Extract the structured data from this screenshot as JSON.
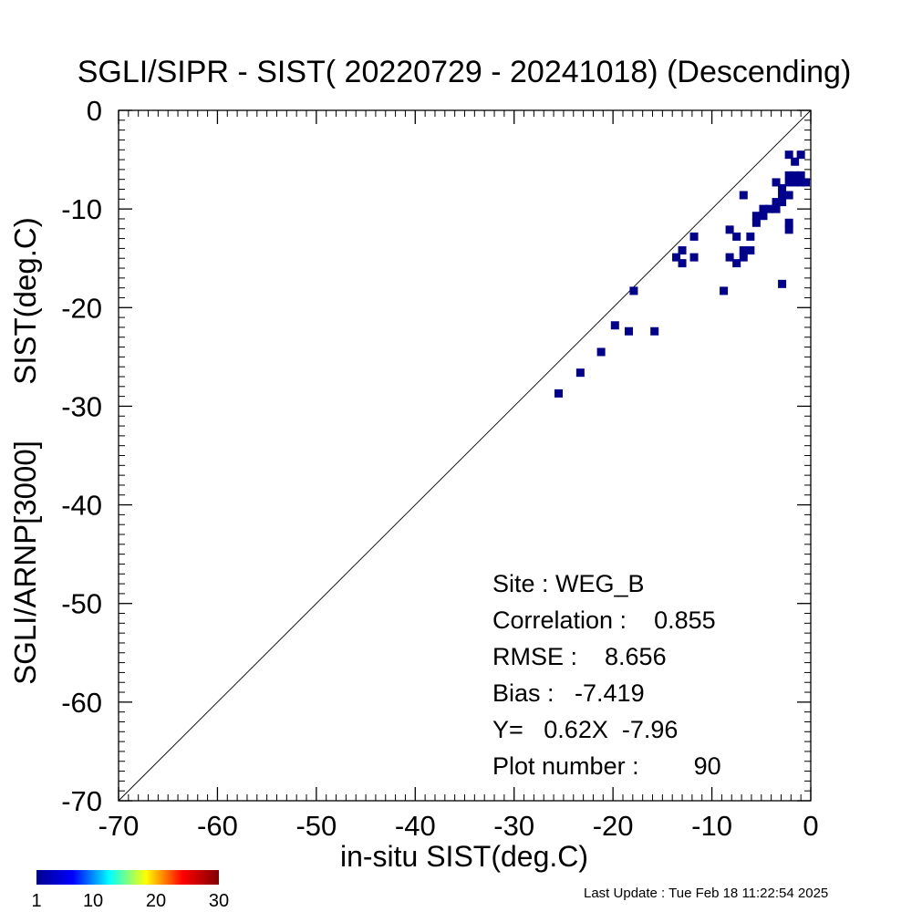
{
  "chart_data": {
    "type": "scatter",
    "title": "SGLI/SIPR - SIST( 20220729 - 20241018) (Descending)",
    "xlabel": "in-situ SIST(deg.C)",
    "ylabel_lines": [
      "SGLI/ARNP[3000]",
      "SIST(deg.C)"
    ],
    "xlim": [
      -70,
      0
    ],
    "ylim": [
      -70,
      0
    ],
    "x_ticks": [
      -70,
      -60,
      -50,
      -40,
      -30,
      -20,
      -10,
      0
    ],
    "y_ticks": [
      -70,
      -60,
      -50,
      -40,
      -30,
      -20,
      -10,
      0
    ],
    "one_to_one_line": true,
    "grid": false,
    "point_color": "#00008c",
    "points": [
      [
        -25.5,
        -28.7
      ],
      [
        -23.3,
        -26.6
      ],
      [
        -21.2,
        -24.5
      ],
      [
        -19.8,
        -21.8
      ],
      [
        -18.4,
        -22.4
      ],
      [
        -15.8,
        -22.4
      ],
      [
        -17.9,
        -18.3
      ],
      [
        -13.6,
        -14.9
      ],
      [
        -13.0,
        -14.2
      ],
      [
        -13.0,
        -15.5
      ],
      [
        -11.8,
        -12.8
      ],
      [
        -11.8,
        -14.9
      ],
      [
        -8.8,
        -18.3
      ],
      [
        -8.2,
        -12.1
      ],
      [
        -8.2,
        -14.9
      ],
      [
        -7.5,
        -12.8
      ],
      [
        -7.5,
        -15.5
      ],
      [
        -6.8,
        -8.6
      ],
      [
        -6.8,
        -14.2
      ],
      [
        -6.8,
        -14.9
      ],
      [
        -6.1,
        -12.8
      ],
      [
        -6.1,
        -14.2
      ],
      [
        -5.5,
        -10.7
      ],
      [
        -5.5,
        -11.4
      ],
      [
        -4.8,
        -10.7
      ],
      [
        -4.8,
        -10.0
      ],
      [
        -4.2,
        -10.0
      ],
      [
        -3.5,
        -7.3
      ],
      [
        -3.5,
        -10.0
      ],
      [
        -3.5,
        -9.3
      ],
      [
        -2.9,
        -7.9
      ],
      [
        -2.9,
        -8.6
      ],
      [
        -2.9,
        -9.3
      ],
      [
        -2.9,
        -17.6
      ],
      [
        -2.2,
        -4.5
      ],
      [
        -2.2,
        -6.6
      ],
      [
        -2.2,
        -7.3
      ],
      [
        -2.2,
        -8.6
      ],
      [
        -2.2,
        -11.4
      ],
      [
        -2.2,
        -12.1
      ],
      [
        -1.6,
        -6.6
      ],
      [
        -1.6,
        -7.3
      ],
      [
        -1.6,
        -5.2
      ],
      [
        -1.0,
        -6.6
      ],
      [
        -1.0,
        -7.3
      ],
      [
        -1.0,
        -4.5
      ],
      [
        -0.5,
        -7.3
      ]
    ],
    "stats_lines": [
      "Site : WEG_B",
      "Correlation :    0.855",
      "RMSE :    8.656",
      "Bias :   -7.419",
      "Y=   0.62X  -7.96",
      "Plot number :        90"
    ],
    "colorbar": {
      "ticks": [
        "1",
        "10",
        "20",
        "30"
      ],
      "colors": [
        "#00008f",
        "#0000ff",
        "#00ffff",
        "#ffff00",
        "#ff0000",
        "#800000"
      ]
    }
  },
  "footer": {
    "last_update": "Last Update : Tue Feb 18 11:22:54 2025"
  }
}
